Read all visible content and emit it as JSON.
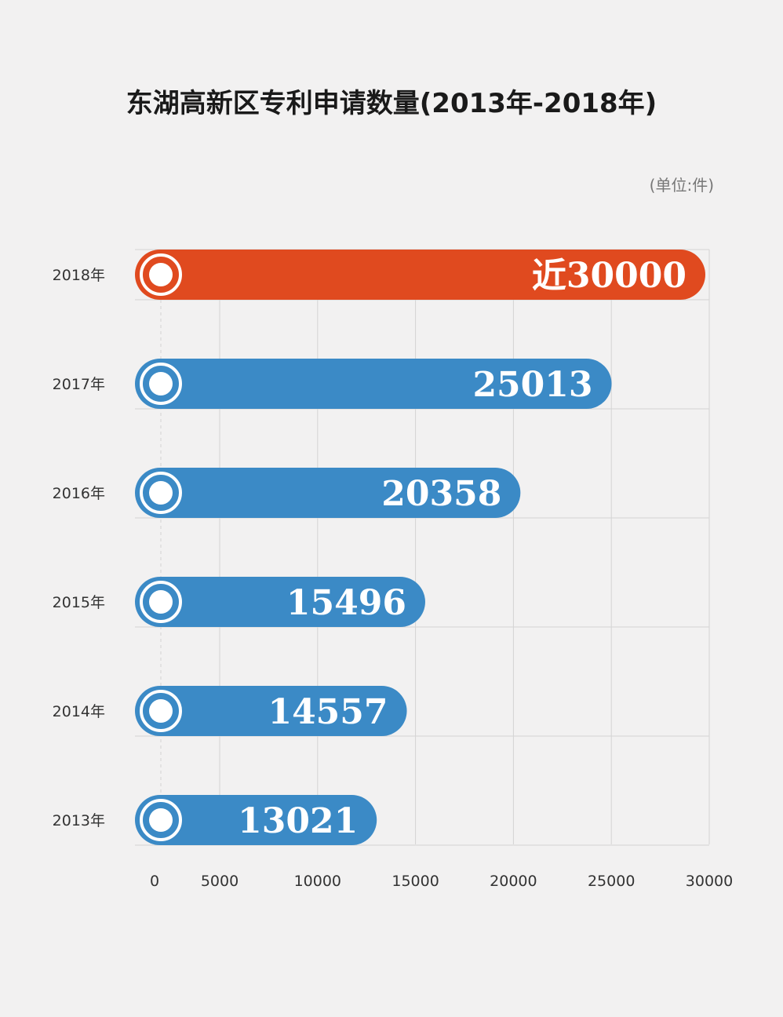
{
  "title": "东湖高新区专利申请数量(2013年-2018年)",
  "unit": "(单位:件)",
  "colors": {
    "background": "#f2f1f1",
    "highlight_bar": "#e04a1f",
    "bar": "#3b8ac6",
    "grid": "#d4d4d4",
    "bar_label": "#ffffff",
    "text": "#333333"
  },
  "chart_data": {
    "type": "bar",
    "orientation": "horizontal",
    "categories": [
      "2018年",
      "2017年",
      "2016年",
      "2015年",
      "2014年",
      "2013年"
    ],
    "values": [
      29300,
      25013,
      20358,
      15496,
      14557,
      13021
    ],
    "value_labels": [
      "近30000",
      "25013",
      "20358",
      "15496",
      "14557",
      "13021"
    ],
    "highlight_index": 0,
    "xlim": [
      0,
      30000
    ],
    "xticks": [
      0,
      5000,
      10000,
      15000,
      20000,
      25000,
      30000
    ],
    "xtick_labels": [
      "0",
      "5000",
      "10000",
      "15000",
      "20000",
      "25000",
      "30000"
    ],
    "grid": true
  }
}
